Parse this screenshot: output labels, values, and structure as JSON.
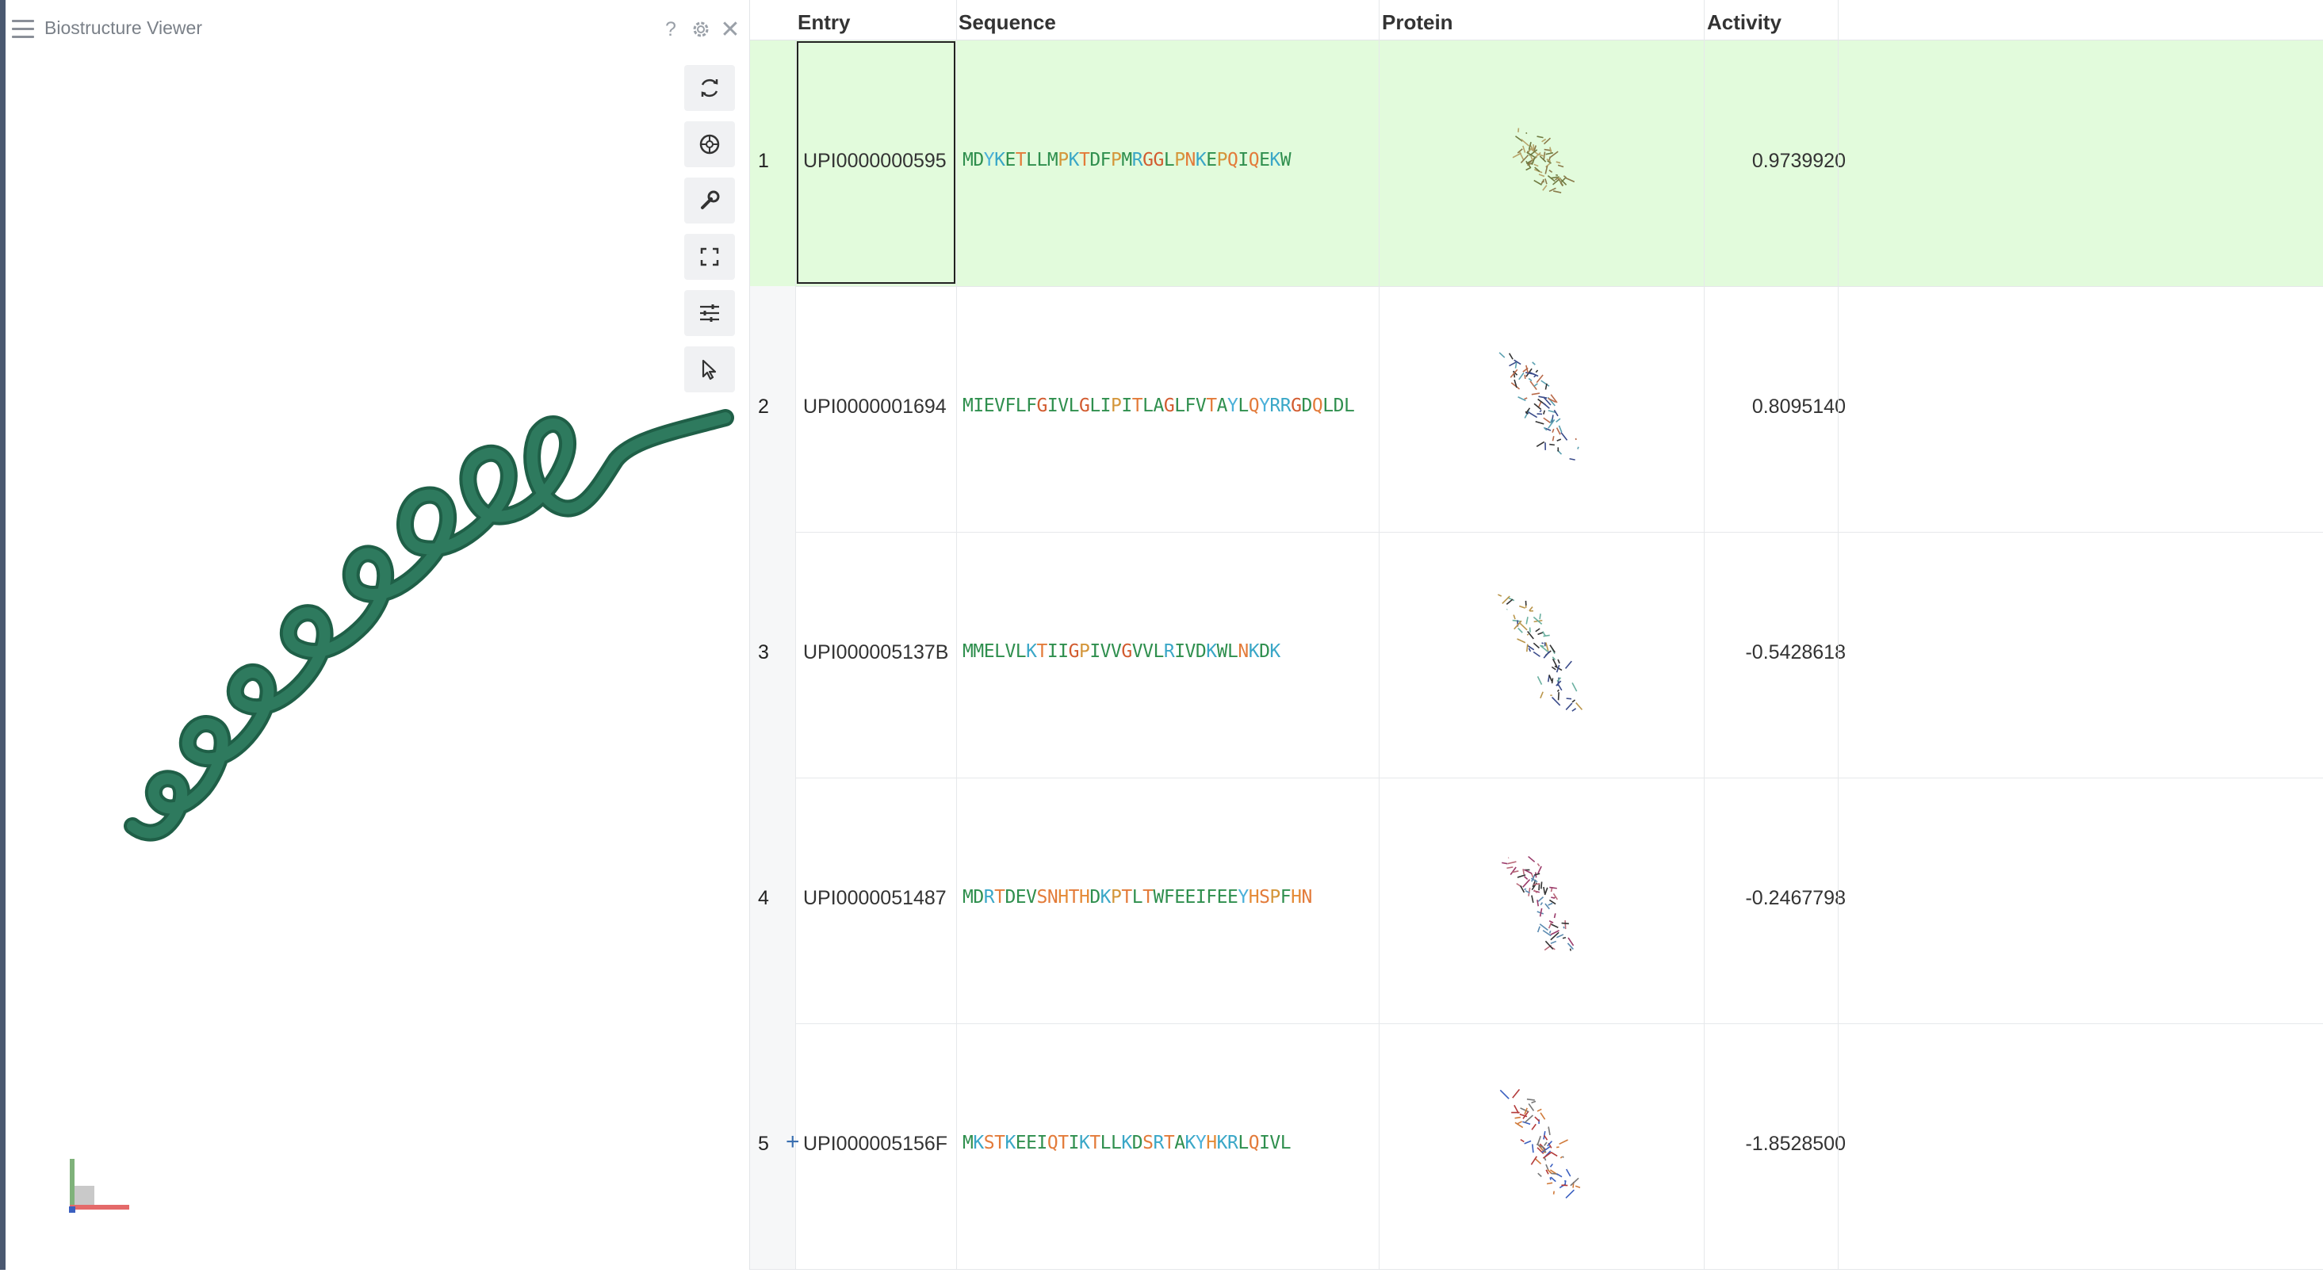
{
  "viewer": {
    "title": "Biostructure Viewer",
    "help_glyph": "?",
    "close_glyph": "✕",
    "toolbar": [
      {
        "name": "reset-view-icon"
      },
      {
        "name": "spin-icon"
      },
      {
        "name": "wrench-icon"
      },
      {
        "name": "fullscreen-icon"
      },
      {
        "name": "sliders-icon"
      },
      {
        "name": "pointer-icon"
      }
    ],
    "ribbon_color": "#2e7a5e"
  },
  "grid": {
    "columns": [
      "Entry",
      "Sequence",
      "Protein",
      "Activity"
    ],
    "selected_row": 1,
    "rows": [
      {
        "num": "1",
        "entry": "UPI0000000595",
        "sequence": "MDYKETLLMPKTDFPMRGGLPNKEPQIQEKW",
        "activity": "0.9739920"
      },
      {
        "num": "2",
        "entry": "UPI0000001694",
        "sequence": "MIEVFLFGIVLGLIPITLAGLFVTAYLQYRRGDQLDL",
        "activity": "0.8095140"
      },
      {
        "num": "3",
        "entry": "UPI000005137B",
        "sequence": "MMELVLKTIIGPIVVGVVLRIVDKWLNKDK",
        "activity": "-0.5428618"
      },
      {
        "num": "4",
        "entry": "UPI0000051487",
        "sequence": "MDRTDEVSNHTHDKPTLTWFEEIFEEYHSPFHN",
        "activity": "-0.2467798"
      },
      {
        "num": "5",
        "entry": "UPI000005156F",
        "sequence": "MKSTKEEIQTIKTLLKDSRTAKYHKRLQIVL",
        "activity": "-1.8528500"
      }
    ],
    "add_glyph": "+"
  }
}
